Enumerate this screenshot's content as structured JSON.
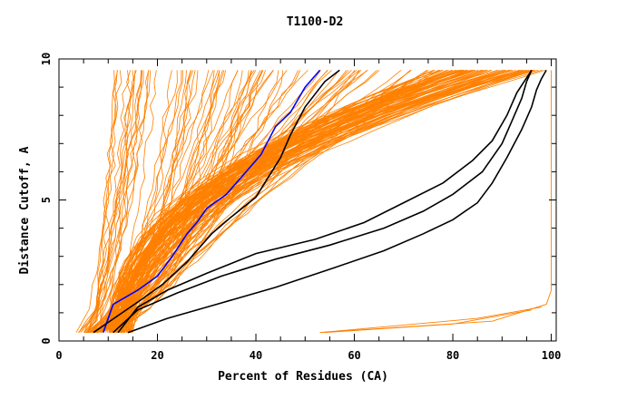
{
  "chart_data": {
    "type": "line",
    "title": "T1100-D2",
    "xlabel": "Percent of Residues (CA)",
    "ylabel": "Distance Cutoff, A",
    "xlim": [
      0,
      101
    ],
    "ylim": [
      0,
      10
    ],
    "x_ticks": [
      "0",
      "20",
      "40",
      "60",
      "80",
      "100"
    ],
    "x_tick_values": [
      0,
      20,
      40,
      60,
      80,
      100
    ],
    "y_ticks": [
      "0",
      "5",
      "10"
    ],
    "y_tick_values": [
      0,
      5,
      10
    ],
    "grid": false,
    "legend": "none",
    "colors": {
      "background_model": "#ff8000",
      "highlight": "#0000ff",
      "reference": "#000000",
      "axis": "#000000"
    },
    "background_bundles": [
      {
        "count": 16,
        "start_x": [
          3.5,
          6
        ],
        "end_x": [
          10,
          20
        ],
        "shape": 0.55
      },
      {
        "count": 30,
        "start_x": [
          5,
          8
        ],
        "end_x": [
          18,
          47
        ],
        "shape": 0.5
      },
      {
        "count": 18,
        "start_x": [
          6,
          9
        ],
        "end_x": [
          30,
          65
        ],
        "shape": 0.9
      },
      {
        "count": 20,
        "start_x": [
          9,
          14
        ],
        "end_x": [
          50,
          82
        ],
        "shape": 1.25
      },
      {
        "count": 80,
        "start_x": [
          10,
          15
        ],
        "end_x": [
          75,
          100
        ],
        "shape": 2.2
      }
    ],
    "low_segments": [
      {
        "x": [
          53,
          88,
          99,
          100,
          100
        ],
        "y": [
          0.3,
          0.7,
          1.3,
          1.8,
          9.6
        ]
      },
      {
        "x": [
          53,
          85,
          98
        ],
        "y": [
          0.3,
          0.8,
          1.2
        ]
      },
      {
        "x": [
          54,
          80,
          96
        ],
        "y": [
          0.3,
          0.6,
          1.1
        ]
      }
    ],
    "series": [
      {
        "color": "#0000ff",
        "x": [
          9,
          11,
          16,
          20,
          23,
          26,
          28,
          30,
          34,
          37,
          41,
          44,
          47,
          50,
          53
        ],
        "y": [
          0.3,
          1.3,
          1.8,
          2.3,
          3.0,
          3.8,
          4.2,
          4.7,
          5.2,
          5.8,
          6.6,
          7.6,
          8.1,
          9.0,
          9.6
        ]
      },
      {
        "color": "#000000",
        "x": [
          7,
          12,
          17,
          21,
          26,
          28,
          31,
          35,
          40,
          45,
          47,
          50,
          54,
          57
        ],
        "y": [
          0.3,
          0.9,
          1.5,
          2.0,
          2.8,
          3.2,
          3.8,
          4.4,
          5.1,
          6.5,
          7.3,
          8.3,
          9.2,
          9.6
        ]
      },
      {
        "color": "#000000",
        "x": [
          12,
          16,
          22,
          30,
          40,
          52,
          62,
          70,
          78,
          84,
          88,
          91,
          93,
          96
        ],
        "y": [
          0.3,
          1.2,
          1.8,
          2.4,
          3.1,
          3.6,
          4.2,
          4.9,
          5.6,
          6.4,
          7.1,
          8.0,
          8.8,
          9.6
        ]
      },
      {
        "color": "#000000",
        "x": [
          11,
          16,
          24,
          33,
          44,
          55,
          66,
          74,
          80,
          86,
          90,
          92,
          94,
          95,
          96
        ],
        "y": [
          0.3,
          1.1,
          1.7,
          2.3,
          2.9,
          3.4,
          4.0,
          4.6,
          5.2,
          6.0,
          7.0,
          7.8,
          8.6,
          9.2,
          9.6
        ]
      },
      {
        "color": "#000000",
        "x": [
          14,
          22,
          32,
          44,
          56,
          66,
          74,
          80,
          85,
          88,
          91,
          94,
          96,
          97,
          98,
          99
        ],
        "y": [
          0.3,
          0.8,
          1.3,
          1.9,
          2.6,
          3.2,
          3.8,
          4.3,
          4.9,
          5.6,
          6.5,
          7.5,
          8.3,
          8.9,
          9.3,
          9.6
        ]
      }
    ]
  }
}
